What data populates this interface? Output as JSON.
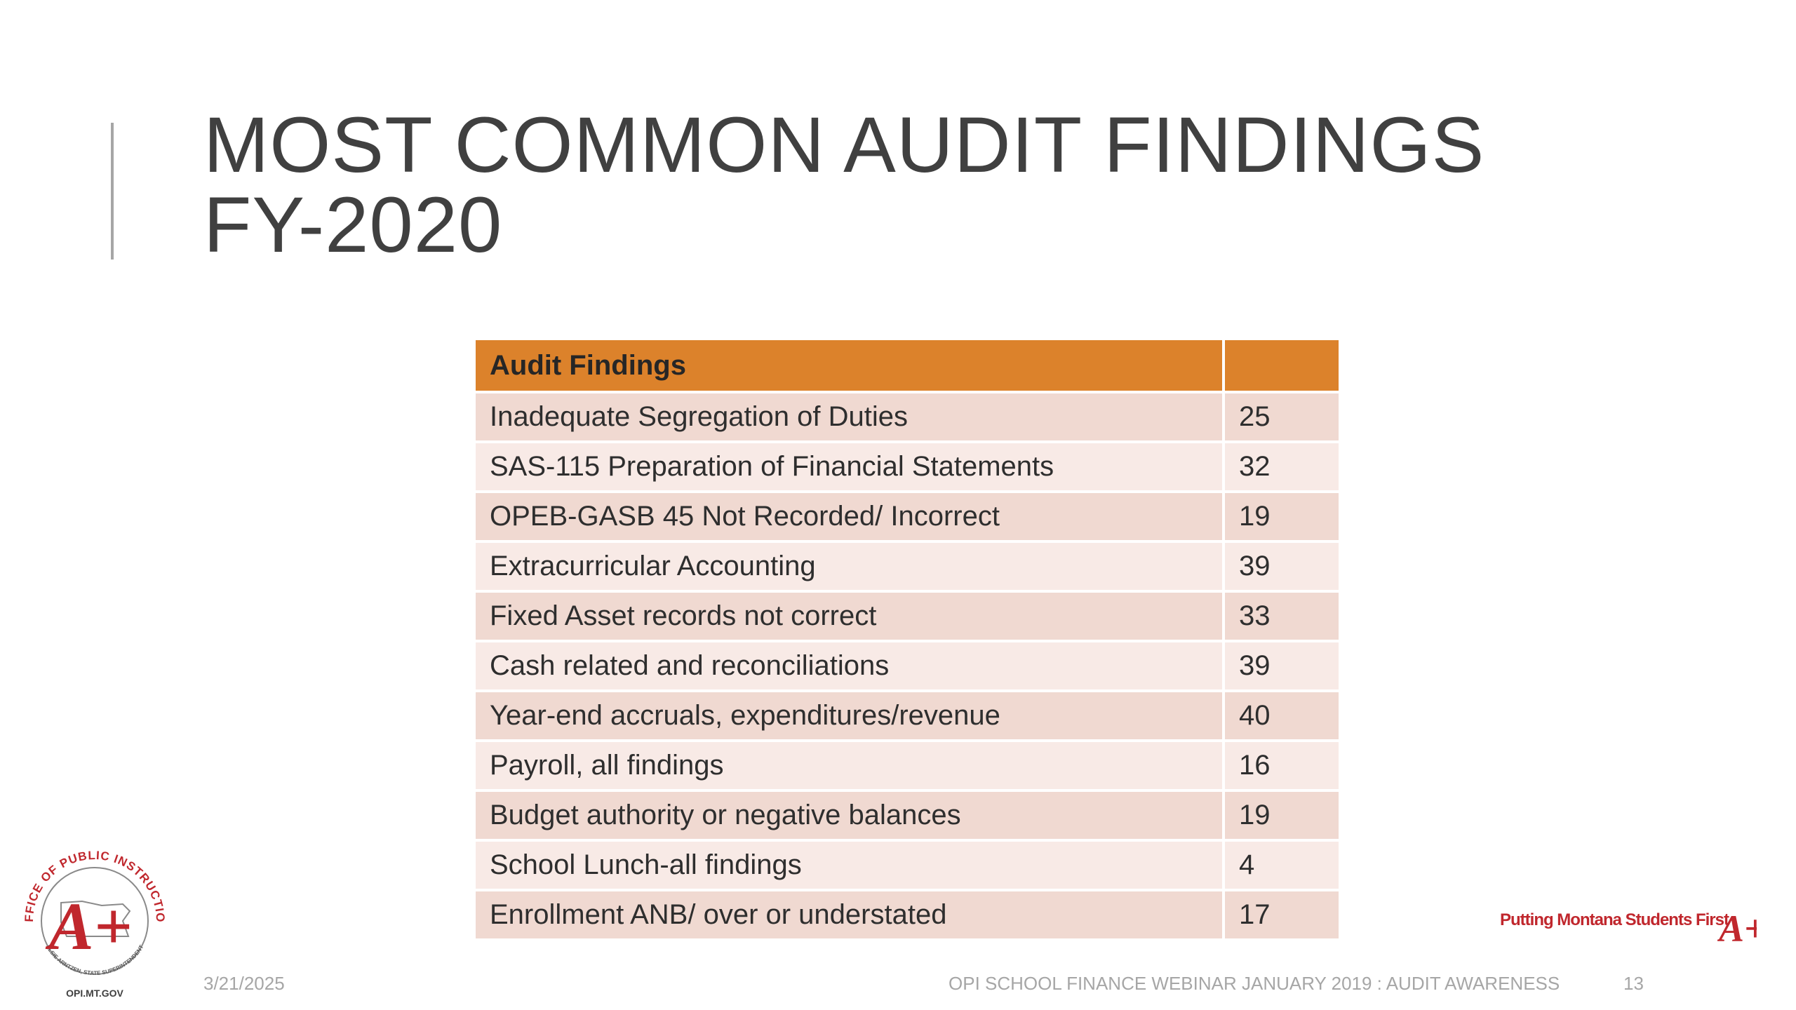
{
  "slide": {
    "title_line1": "MOST COMMON AUDIT FINDINGS",
    "title_line2": "FY-2020"
  },
  "table": {
    "headers": [
      "Audit Findings",
      ""
    ],
    "rows": [
      {
        "label": "Inadequate Segregation of Duties",
        "count": "25"
      },
      {
        "label": "SAS-115 Preparation of Financial Statements",
        "count": "32"
      },
      {
        "label": "OPEB-GASB 45 Not Recorded/ Incorrect",
        "count": "19"
      },
      {
        "label": "Extracurricular Accounting",
        "count": "39"
      },
      {
        "label": "Fixed Asset records not correct",
        "count": "33"
      },
      {
        "label": "Cash related and reconciliations",
        "count": "39"
      },
      {
        "label": "Year-end accruals, expenditures/revenue",
        "count": "40"
      },
      {
        "label": "Payroll, all findings",
        "count": "16"
      },
      {
        "label": "Budget authority or negative balances",
        "count": "19"
      },
      {
        "label": "School Lunch-all findings",
        "count": "4"
      },
      {
        "label": "Enrollment ANB/ over or understated",
        "count": "17"
      }
    ]
  },
  "footer": {
    "date": "3/21/2025",
    "text": "OPI SCHOOL FINANCE WEBINAR JANUARY 2019 : AUDIT AWARENESS",
    "slide_number": "13"
  },
  "logo": {
    "ring_text": "OFFICE OF PUBLIC INSTRUCTION",
    "superintendent": "ELSIE ARNTZEN, STATE SUPERINTENDENT",
    "grade": "A+",
    "website": "OPI.MT.GOV"
  },
  "branding": {
    "tagline": "Putting Montana Students First",
    "mark": "A+"
  },
  "colors": {
    "header": "#dc822b",
    "row_odd": "#f0d9d1",
    "row_even": "#f8eae6",
    "brand_red": "#c0272d"
  }
}
